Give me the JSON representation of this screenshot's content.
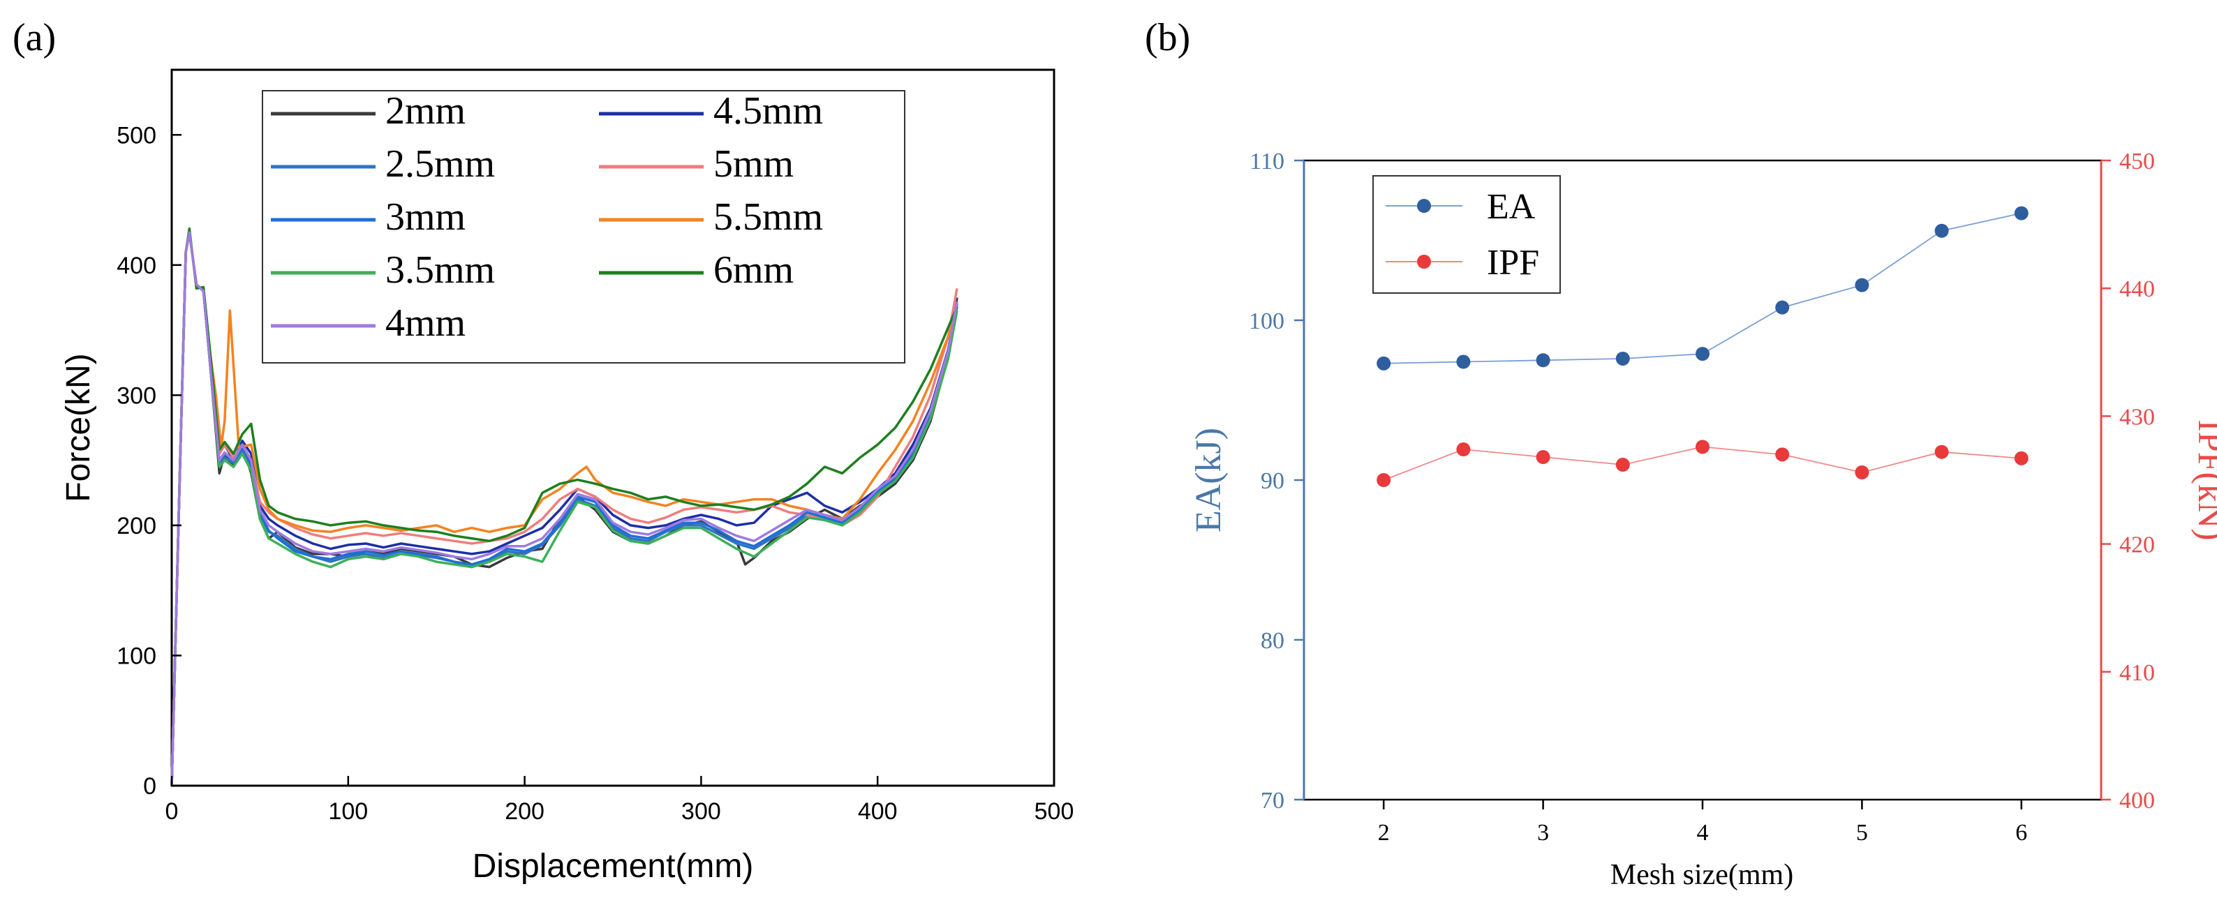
{
  "panels": {
    "a_label": "(a)",
    "b_label": "(b)"
  },
  "chart_data": [
    {
      "type": "line",
      "panel": "(a)",
      "title": "",
      "xlabel": "Displacement(mm)",
      "ylabel": "Force(kN)",
      "xlim": [
        0,
        500
      ],
      "ylim": [
        0,
        550
      ],
      "xticks": [
        0,
        100,
        200,
        300,
        400,
        500
      ],
      "yticks": [
        0,
        100,
        200,
        300,
        400,
        500
      ],
      "legend_position": "top-center",
      "legend": [
        "2mm",
        "4.5mm",
        "2.5mm",
        "5mm",
        "3mm",
        "5.5mm",
        "3.5mm",
        "6mm",
        "4mm"
      ],
      "series": [
        {
          "name": "2mm",
          "color": "#3a3a3a",
          "x": [
            0,
            5,
            8,
            10,
            14,
            18,
            22,
            27,
            30,
            35,
            40,
            45,
            50,
            55,
            60,
            70,
            80,
            90,
            100,
            110,
            120,
            130,
            140,
            150,
            160,
            170,
            180,
            190,
            200,
            210,
            220,
            230,
            240,
            250,
            260,
            270,
            280,
            290,
            300,
            310,
            320,
            325,
            330,
            340,
            350,
            360,
            370,
            380,
            390,
            400,
            410,
            420,
            430,
            440,
            445
          ],
          "y": [
            0,
            260,
            410,
            425,
            385,
            380,
            320,
            240,
            255,
            245,
            262,
            240,
            205,
            190,
            195,
            183,
            178,
            178,
            176,
            180,
            178,
            182,
            180,
            178,
            176,
            170,
            168,
            175,
            180,
            182,
            205,
            222,
            212,
            195,
            188,
            186,
            192,
            200,
            203,
            195,
            188,
            170,
            175,
            188,
            195,
            205,
            212,
            205,
            215,
            222,
            232,
            250,
            280,
            330,
            375
          ]
        },
        {
          "name": "4.5mm",
          "color": "#1c2fa6",
          "x": [
            0,
            5,
            8,
            10,
            14,
            18,
            22,
            27,
            30,
            35,
            40,
            45,
            50,
            55,
            60,
            70,
            80,
            90,
            100,
            110,
            120,
            130,
            140,
            150,
            160,
            170,
            180,
            190,
            200,
            210,
            220,
            230,
            240,
            250,
            260,
            270,
            280,
            290,
            300,
            310,
            320,
            330,
            340,
            350,
            360,
            370,
            380,
            390,
            400,
            410,
            420,
            430,
            440,
            445
          ],
          "y": [
            0,
            260,
            410,
            425,
            385,
            380,
            320,
            255,
            262,
            250,
            265,
            255,
            215,
            205,
            200,
            192,
            186,
            182,
            185,
            186,
            183,
            186,
            184,
            182,
            180,
            178,
            180,
            186,
            192,
            198,
            212,
            228,
            222,
            208,
            200,
            198,
            200,
            205,
            208,
            205,
            200,
            202,
            215,
            220,
            225,
            215,
            210,
            218,
            228,
            240,
            262,
            290,
            335,
            372
          ]
        },
        {
          "name": "2.5mm",
          "color": "#2f74c0",
          "x": [
            0,
            5,
            8,
            10,
            14,
            18,
            22,
            27,
            30,
            35,
            40,
            45,
            50,
            55,
            60,
            70,
            80,
            90,
            100,
            110,
            120,
            130,
            140,
            150,
            160,
            170,
            180,
            190,
            200,
            210,
            220,
            230,
            240,
            250,
            260,
            270,
            280,
            290,
            300,
            310,
            320,
            330,
            340,
            350,
            360,
            370,
            380,
            390,
            400,
            410,
            420,
            430,
            440,
            445
          ],
          "y": [
            0,
            260,
            410,
            425,
            385,
            380,
            320,
            245,
            252,
            248,
            258,
            245,
            208,
            195,
            192,
            182,
            176,
            172,
            176,
            178,
            175,
            178,
            177,
            175,
            172,
            168,
            172,
            180,
            178,
            185,
            200,
            220,
            215,
            198,
            190,
            188,
            195,
            200,
            200,
            193,
            186,
            182,
            190,
            198,
            208,
            205,
            200,
            210,
            225,
            235,
            255,
            285,
            330,
            368
          ]
        },
        {
          "name": "5mm",
          "color": "#f07d7d",
          "x": [
            0,
            5,
            8,
            10,
            14,
            18,
            22,
            27,
            30,
            35,
            40,
            45,
            50,
            55,
            60,
            70,
            80,
            90,
            100,
            110,
            120,
            130,
            140,
            150,
            160,
            170,
            180,
            190,
            200,
            210,
            220,
            230,
            240,
            250,
            260,
            270,
            280,
            290,
            300,
            310,
            320,
            330,
            340,
            350,
            360,
            370,
            380,
            390,
            400,
            410,
            420,
            430,
            440,
            445
          ],
          "y": [
            0,
            260,
            410,
            425,
            385,
            380,
            320,
            255,
            262,
            252,
            262,
            250,
            218,
            210,
            205,
            198,
            193,
            190,
            192,
            194,
            192,
            194,
            192,
            190,
            188,
            186,
            188,
            190,
            195,
            205,
            220,
            228,
            222,
            212,
            205,
            202,
            206,
            212,
            214,
            212,
            210,
            212,
            215,
            210,
            208,
            205,
            200,
            208,
            222,
            245,
            268,
            300,
            345,
            382
          ]
        },
        {
          "name": "3mm",
          "color": "#1f6fd6",
          "x": [
            0,
            5,
            8,
            10,
            14,
            18,
            22,
            27,
            30,
            35,
            40,
            45,
            50,
            55,
            60,
            70,
            80,
            90,
            100,
            110,
            120,
            130,
            140,
            150,
            160,
            170,
            180,
            190,
            200,
            210,
            220,
            230,
            240,
            250,
            260,
            270,
            280,
            290,
            300,
            310,
            320,
            330,
            340,
            350,
            360,
            370,
            380,
            390,
            400,
            410,
            420,
            430,
            440,
            445
          ],
          "y": [
            0,
            260,
            410,
            425,
            385,
            380,
            320,
            248,
            255,
            250,
            260,
            248,
            210,
            196,
            190,
            180,
            176,
            174,
            178,
            180,
            177,
            180,
            178,
            176,
            172,
            170,
            174,
            182,
            180,
            186,
            202,
            222,
            218,
            200,
            192,
            190,
            196,
            202,
            202,
            196,
            188,
            184,
            192,
            200,
            210,
            206,
            202,
            212,
            226,
            236,
            256,
            286,
            332,
            370
          ]
        },
        {
          "name": "5.5mm",
          "color": "#f5821f",
          "x": [
            0,
            5,
            8,
            10,
            14,
            18,
            22,
            25,
            28,
            30,
            33,
            38,
            45,
            50,
            55,
            60,
            70,
            80,
            90,
            100,
            110,
            120,
            130,
            140,
            150,
            160,
            170,
            180,
            190,
            200,
            210,
            220,
            230,
            235,
            240,
            250,
            260,
            270,
            280,
            290,
            300,
            310,
            320,
            330,
            340,
            350,
            360,
            370,
            380,
            390,
            400,
            410,
            420,
            430,
            440,
            445
          ],
          "y": [
            0,
            260,
            410,
            425,
            385,
            380,
            330,
            300,
            260,
            280,
            365,
            260,
            262,
            228,
            212,
            205,
            200,
            196,
            195,
            198,
            200,
            198,
            196,
            198,
            200,
            195,
            198,
            195,
            198,
            200,
            220,
            228,
            240,
            245,
            235,
            225,
            222,
            218,
            215,
            220,
            218,
            216,
            218,
            220,
            220,
            215,
            212,
            208,
            205,
            220,
            240,
            258,
            280,
            310,
            345,
            365
          ]
        },
        {
          "name": "3.5mm",
          "color": "#3cb05a",
          "x": [
            0,
            5,
            8,
            10,
            14,
            18,
            22,
            27,
            30,
            35,
            40,
            45,
            50,
            55,
            60,
            70,
            80,
            90,
            100,
            110,
            120,
            130,
            140,
            150,
            160,
            170,
            180,
            190,
            200,
            210,
            220,
            230,
            240,
            250,
            260,
            270,
            280,
            290,
            300,
            310,
            320,
            330,
            340,
            350,
            360,
            370,
            380,
            390,
            400,
            410,
            420,
            430,
            440,
            445
          ],
          "y": [
            0,
            260,
            410,
            425,
            385,
            380,
            320,
            245,
            250,
            245,
            255,
            242,
            205,
            190,
            186,
            178,
            172,
            168,
            174,
            176,
            174,
            178,
            176,
            172,
            170,
            168,
            172,
            178,
            176,
            172,
            196,
            218,
            214,
            196,
            188,
            186,
            192,
            198,
            198,
            190,
            182,
            176,
            186,
            196,
            206,
            204,
            200,
            210,
            224,
            234,
            252,
            282,
            328,
            365
          ]
        },
        {
          "name": "6mm",
          "color": "#1e7f1e",
          "x": [
            0,
            5,
            8,
            10,
            14,
            18,
            22,
            27,
            30,
            35,
            40,
            45,
            50,
            55,
            60,
            70,
            80,
            90,
            100,
            110,
            120,
            130,
            140,
            150,
            160,
            170,
            180,
            190,
            200,
            210,
            220,
            230,
            240,
            250,
            260,
            270,
            280,
            290,
            300,
            310,
            320,
            330,
            340,
            350,
            360,
            370,
            380,
            390,
            400,
            410,
            420,
            430,
            440,
            445
          ],
          "y": [
            0,
            260,
            410,
            428,
            382,
            383,
            330,
            258,
            264,
            255,
            270,
            278,
            235,
            215,
            210,
            205,
            203,
            200,
            202,
            203,
            200,
            198,
            196,
            195,
            192,
            190,
            188,
            192,
            198,
            225,
            232,
            235,
            232,
            228,
            225,
            220,
            222,
            218,
            215,
            216,
            214,
            212,
            216,
            222,
            232,
            245,
            240,
            252,
            262,
            275,
            295,
            320,
            352,
            368
          ]
        },
        {
          "name": "4mm",
          "color": "#a07ae0",
          "x": [
            0,
            5,
            8,
            10,
            14,
            18,
            22,
            27,
            30,
            35,
            40,
            45,
            50,
            55,
            60,
            70,
            80,
            90,
            100,
            110,
            120,
            130,
            140,
            150,
            160,
            170,
            180,
            190,
            200,
            210,
            220,
            230,
            240,
            250,
            260,
            270,
            280,
            290,
            300,
            310,
            320,
            330,
            340,
            350,
            360,
            370,
            380,
            390,
            400,
            410,
            420,
            430,
            440,
            445
          ],
          "y": [
            0,
            260,
            410,
            425,
            385,
            380,
            320,
            250,
            256,
            250,
            262,
            250,
            212,
            200,
            195,
            186,
            180,
            178,
            180,
            182,
            180,
            183,
            181,
            179,
            176,
            174,
            178,
            184,
            184,
            190,
            205,
            224,
            220,
            202,
            195,
            193,
            198,
            204,
            205,
            198,
            192,
            188,
            196,
            204,
            212,
            208,
            204,
            214,
            228,
            238,
            258,
            288,
            334,
            372
          ]
        }
      ]
    },
    {
      "type": "line",
      "panel": "(b)",
      "title": "",
      "xlabel": "Mesh size(mm)",
      "ylabel": "EA(kJ)",
      "y2label": "IPF(kN)",
      "xlim": [
        1.5,
        6.5
      ],
      "ylim": [
        70,
        110
      ],
      "y2lim": [
        400,
        450
      ],
      "xticks": [
        2,
        3,
        4,
        5,
        6
      ],
      "yticks": [
        70,
        80,
        90,
        100,
        110
      ],
      "y2ticks": [
        400,
        410,
        420,
        430,
        440,
        450
      ],
      "legend_position": "top-left",
      "categories": [
        2,
        2.5,
        3,
        3.5,
        4,
        4.5,
        5,
        5.5,
        6
      ],
      "series": [
        {
          "name": "EA",
          "axis": "left",
          "color": "#2f5e9e",
          "line_color": "#7a9fd6",
          "values": [
            97.3,
            97.4,
            97.5,
            97.6,
            97.9,
            100.8,
            102.2,
            105.6,
            106.7
          ]
        },
        {
          "name": "IPF",
          "axis": "right",
          "color": "#e83a3a",
          "line_color": "#f08888",
          "values": [
            425.0,
            427.4,
            426.8,
            426.2,
            427.6,
            427.0,
            425.6,
            427.2,
            426.7
          ]
        }
      ],
      "colors": {
        "left_axis": "#4a78a8",
        "right_axis": "#e84a4a"
      }
    }
  ]
}
